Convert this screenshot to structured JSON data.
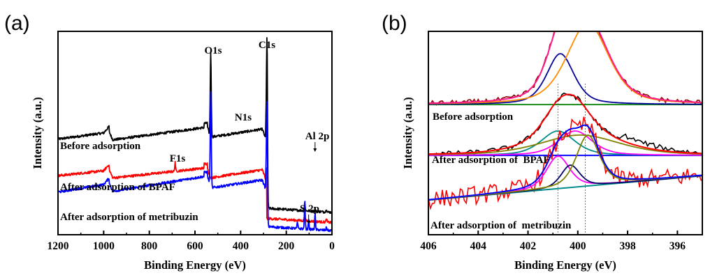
{
  "figure": {
    "panel_labels": [
      "(a)",
      "(b)"
    ]
  },
  "chart_data": [
    {
      "id": "a",
      "type": "line",
      "title": "(a)",
      "xlabel": "Binding Energy (eV)",
      "ylabel": "Intensity (a.u.)",
      "xlim": [
        1200,
        0
      ],
      "x_reversed": true,
      "xticks": [
        1200,
        1000,
        800,
        600,
        400,
        200,
        0
      ],
      "xtick_labels": [
        "1200",
        "1000",
        "800",
        "600",
        "400",
        "200",
        "0"
      ],
      "minor_xticks": [
        1100,
        900,
        700,
        500,
        300,
        100
      ],
      "ylim": [
        0,
        1
      ],
      "grid": false,
      "legend": "none",
      "series": [
        {
          "name": "Before adsorption",
          "color": "#000000",
          "baseline_high_be": 0.47,
          "baseline_mid": 0.57,
          "baseline_low_be": 0.11,
          "peaks": [
            {
              "label": "O1s",
              "be": 531,
              "height": 0.9
            },
            {
              "label": "C1s",
              "be": 284.6,
              "height": 0.98
            },
            {
              "label": "N1s",
              "be": 400,
              "height": 0.43
            },
            {
              "label": "Al 2p",
              "be": 74,
              "height": 0.13
            }
          ]
        },
        {
          "name": "After adsorption of BPAF",
          "color": "#ff0000",
          "baseline_high_be": 0.29,
          "baseline_mid": 0.37,
          "baseline_low_be": 0.06,
          "peaks": [
            {
              "label": "F1s",
              "be": 687,
              "height": 0.36
            },
            {
              "label": "N1s",
              "be": 400,
              "height": 0.27
            }
          ]
        },
        {
          "name": "After adsorption of metribuzin",
          "color": "#0000ff",
          "baseline_high_be": 0.21,
          "baseline_mid": 0.33,
          "baseline_low_be": 0.02,
          "peaks": [
            {
              "label": "O1s",
              "be": 531,
              "height": 0.7
            },
            {
              "label": "C1s",
              "be": 284.6,
              "height": 0.66
            },
            {
              "label": "N1s",
              "be": 400,
              "height": 0.14
            },
            {
              "label": "S 2p",
              "be": 102,
              "height": 0.08
            }
          ]
        }
      ],
      "annotations": [
        {
          "text": "O1s",
          "x": 531
        },
        {
          "text": "C1s",
          "x": 284.6
        },
        {
          "text": "N1s",
          "x": 400
        },
        {
          "text": "F1s",
          "x": 687
        },
        {
          "text": "Al 2p",
          "x": 74,
          "arrow": true
        },
        {
          "text": "S 2p",
          "x": 102,
          "arrow": true
        }
      ]
    },
    {
      "id": "b",
      "type": "line",
      "title": "(b)",
      "xlabel": "Binding Energy (eV)",
      "ylabel": "Intensity (a.u.)",
      "xlim": [
        406,
        395
      ],
      "x_reversed": true,
      "xticks": [
        406,
        404,
        402,
        400,
        398,
        396
      ],
      "xtick_labels": [
        "406",
        "404",
        "402",
        "400",
        "398",
        "396"
      ],
      "minor_xticks": [
        405,
        403,
        401,
        399,
        397
      ],
      "ylim": [
        0,
        1
      ],
      "grid": false,
      "legend": "none",
      "reference_lines": [
        400.8,
        399.7
      ],
      "series_groups": [
        {
          "name": "Before adsorption",
          "raw_color": "#8b0000",
          "envelope_color": "#ff1a8c",
          "background_color": "#1a8c1a",
          "baseline": 0.64,
          "components": [
            {
              "center": 400.7,
              "height": 0.25,
              "fwhm": 1.3,
              "color": "#000099"
            },
            {
              "center": 399.6,
              "height": 0.4,
              "fwhm": 2.0,
              "color": "#ff8c00"
            }
          ]
        },
        {
          "name": "After adsorption of  BPAF",
          "raw_color": "#000000",
          "envelope_color": "#ff0000",
          "background_color": "#0000ff",
          "baseline": 0.39,
          "components": [
            {
              "center": 400.8,
              "height": 0.12,
              "fwhm": 1.6,
              "color": "#008b8b"
            },
            {
              "center": 400.1,
              "height": 0.12,
              "fwhm": 1.6,
              "color": "#ff00ff"
            },
            {
              "center": 399.9,
              "height": 0.1,
              "fwhm": 3.8,
              "color": "#808000"
            }
          ]
        },
        {
          "name": "After adsorption of  metribuzin",
          "raw_color": "#ff0000",
          "envelope_color": "#0000ff",
          "background_color": "#008b8b",
          "baseline_left": 0.17,
          "baseline_right": 0.29,
          "components": [
            {
              "center": 400.8,
              "height": 0.16,
              "fwhm": 1.1,
              "color": "#ff00ff"
            },
            {
              "center": 400.3,
              "height": 0.11,
              "fwhm": 0.9,
              "color": "#000066"
            },
            {
              "center": 399.6,
              "height": 0.25,
              "fwhm": 1.1,
              "color": "#808000"
            }
          ]
        }
      ]
    }
  ]
}
